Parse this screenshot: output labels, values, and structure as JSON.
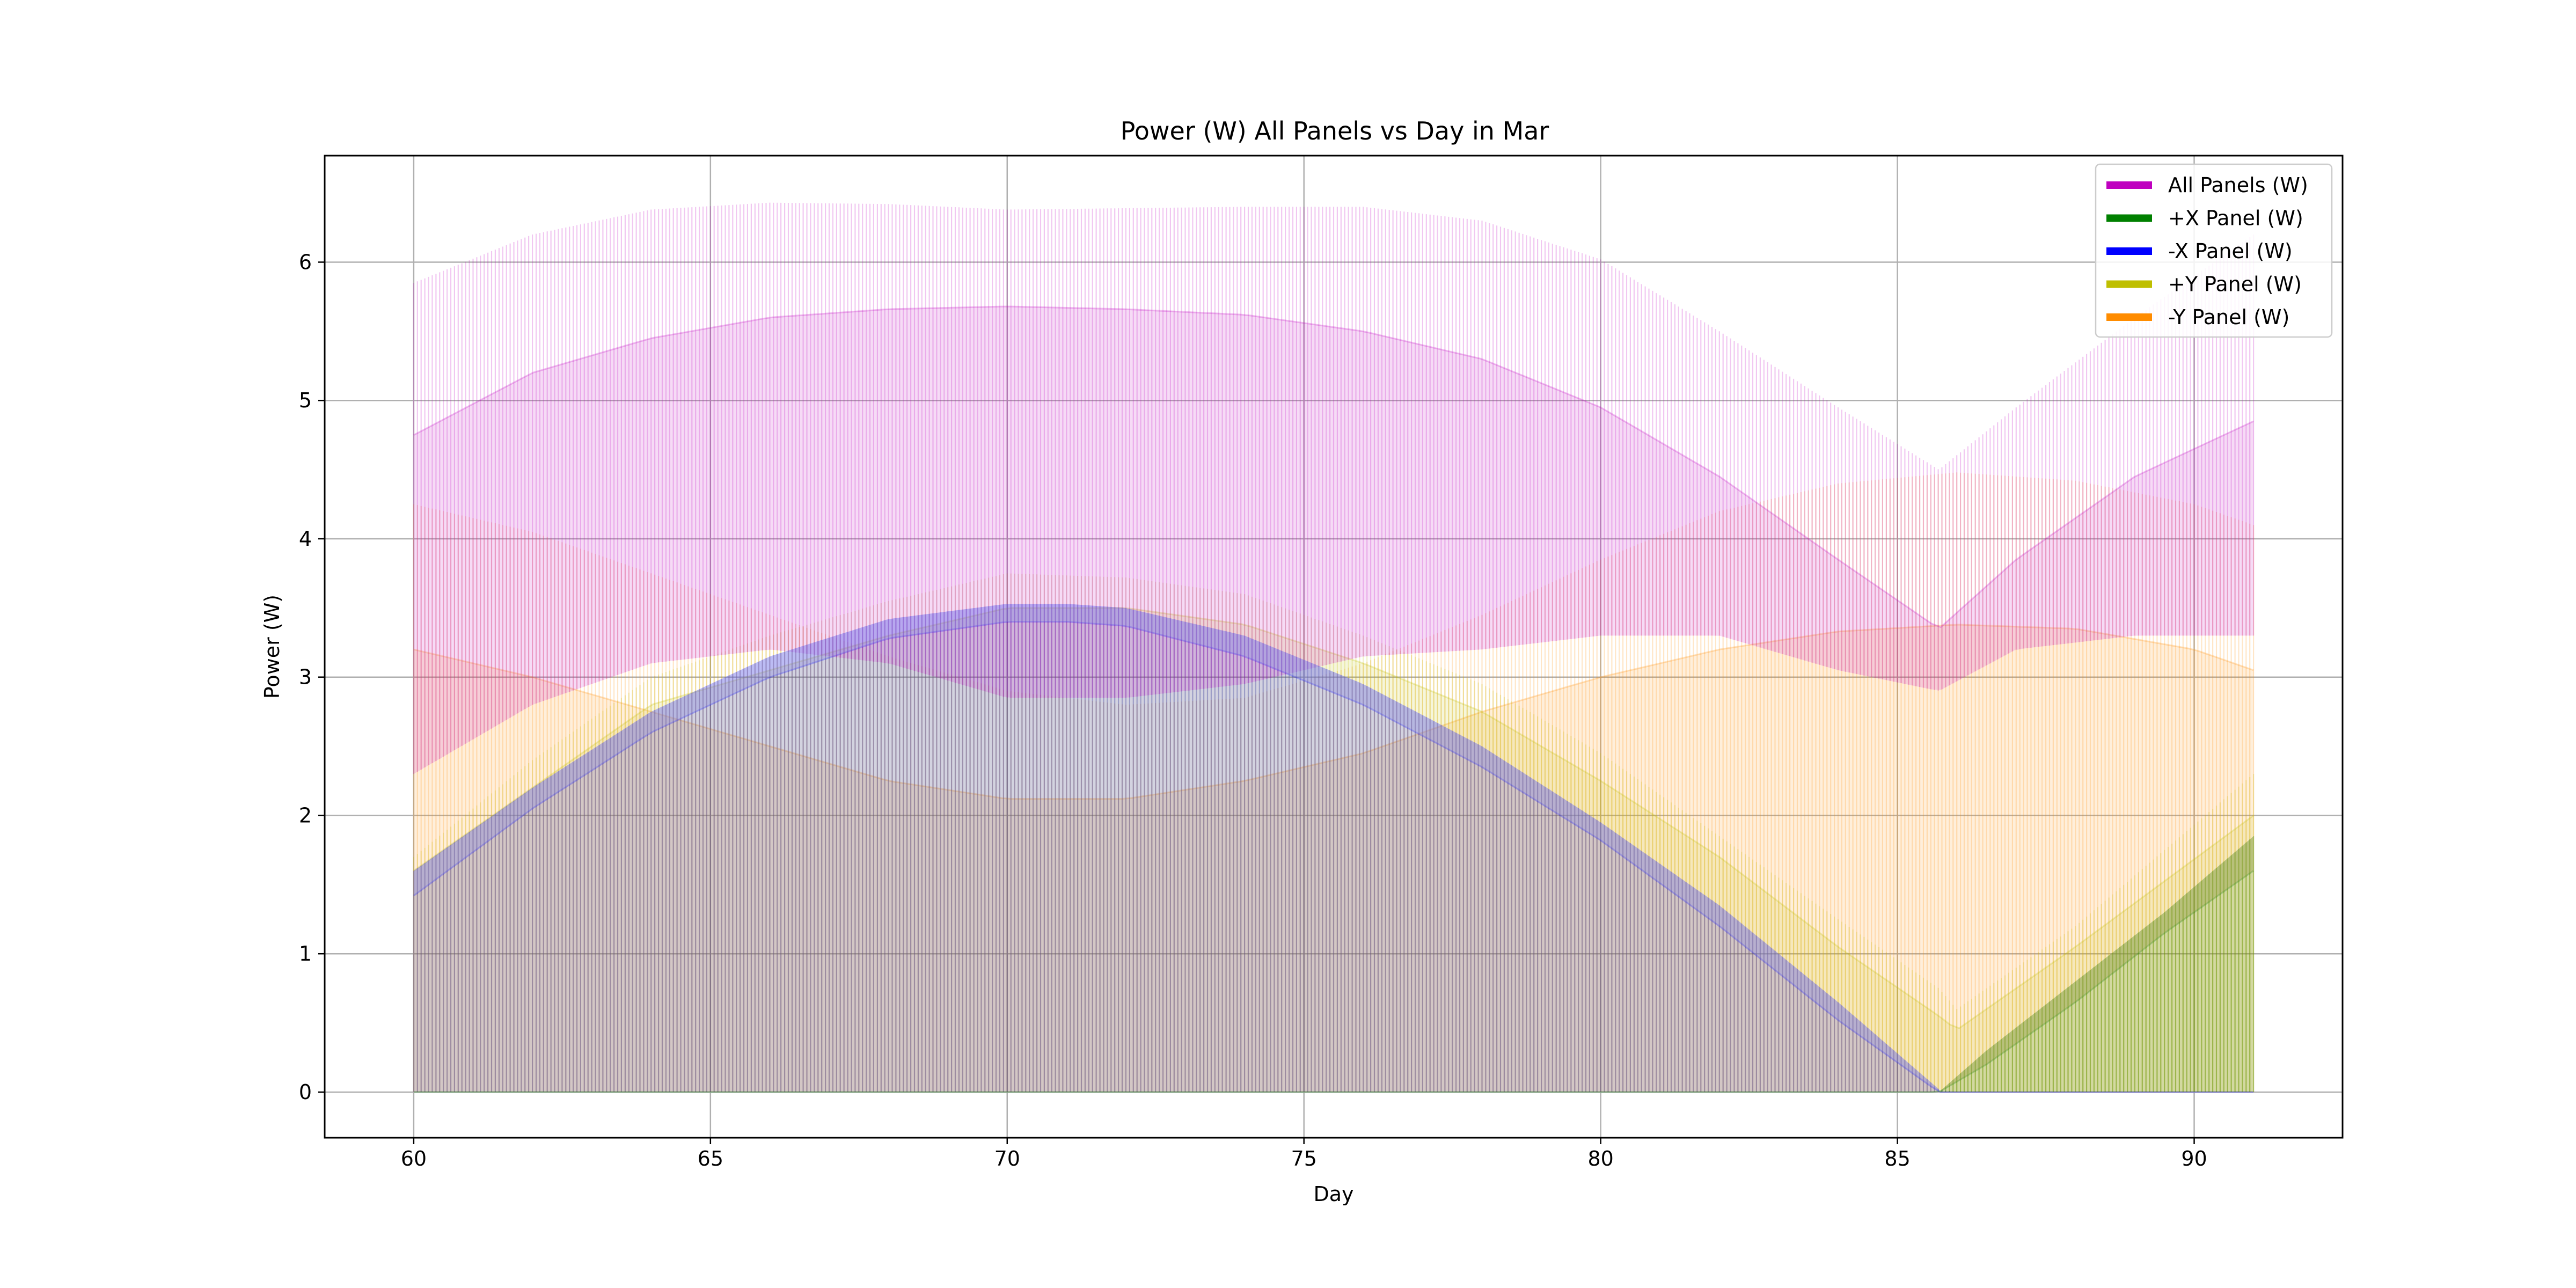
{
  "chart_data": {
    "type": "line",
    "title": "Power (W) All Panels vs Day in Mar",
    "xlabel": "Day",
    "ylabel": "Power (W)",
    "xlim": [
      58.5,
      92.5
    ],
    "ylim": [
      -0.33,
      6.77
    ],
    "x_ticks": [
      60,
      65,
      70,
      75,
      80,
      85,
      90
    ],
    "y_ticks": [
      0,
      1,
      2,
      3,
      4,
      5,
      6
    ],
    "grid": true,
    "legend_position": "top-right",
    "series": [
      {
        "name": "All Panels (W)",
        "color": "#bf00bf",
        "envelope": {
          "x": [
            60,
            62,
            64,
            66,
            68,
            70,
            72,
            74,
            76,
            78,
            80,
            82,
            84,
            85.7,
            87,
            89,
            91
          ],
          "high": [
            5.85,
            6.2,
            6.38,
            6.43,
            6.42,
            6.38,
            6.39,
            6.4,
            6.4,
            6.3,
            6.02,
            5.5,
            4.95,
            4.5,
            4.95,
            5.6,
            6.2
          ],
          "band": [
            4.75,
            5.2,
            5.45,
            5.6,
            5.66,
            5.68,
            5.66,
            5.62,
            5.5,
            5.3,
            4.95,
            4.45,
            3.85,
            3.35,
            3.85,
            4.45,
            4.85
          ],
          "low": [
            2.3,
            2.8,
            3.1,
            3.2,
            3.1,
            2.85,
            2.85,
            2.95,
            3.15,
            3.2,
            3.3,
            3.3,
            3.05,
            2.9,
            3.2,
            3.3,
            3.3
          ]
        }
      },
      {
        "name": "+X Panel (W)",
        "color": "#008000",
        "envelope": {
          "x": [
            60,
            85.7,
            86.5,
            88,
            89.5,
            91
          ],
          "high": [
            0,
            0,
            0.3,
            0.8,
            1.3,
            1.85
          ],
          "band": [
            0,
            0,
            0.2,
            0.65,
            1.15,
            1.6
          ],
          "low": [
            0,
            0,
            0,
            0,
            0,
            0
          ]
        }
      },
      {
        "name": "-X Panel (W)",
        "color": "#0000ff",
        "envelope": {
          "x": [
            60,
            62,
            64,
            66,
            68,
            70,
            71,
            72,
            74,
            76,
            78,
            80,
            82,
            84,
            85.7,
            86,
            91
          ],
          "high": [
            1.6,
            2.2,
            2.75,
            3.15,
            3.42,
            3.53,
            3.53,
            3.5,
            3.3,
            2.95,
            2.5,
            1.95,
            1.35,
            0.65,
            0.02,
            0,
            0
          ],
          "band": [
            1.42,
            2.05,
            2.6,
            3.0,
            3.28,
            3.4,
            3.4,
            3.37,
            3.15,
            2.8,
            2.35,
            1.82,
            1.2,
            0.52,
            0,
            0,
            0
          ],
          "low": [
            0,
            0,
            0,
            0,
            0,
            0,
            0,
            0,
            0,
            0,
            0,
            0,
            0,
            0,
            0,
            0,
            0
          ]
        }
      },
      {
        "name": "+Y Panel (W)",
        "color": "#bfbf00",
        "envelope": {
          "x": [
            60,
            62,
            64,
            66,
            68,
            70,
            72,
            74,
            76,
            78,
            80,
            82,
            84,
            85.7,
            86,
            88,
            91
          ],
          "high": [
            1.7,
            2.4,
            3.0,
            3.3,
            3.55,
            3.75,
            3.72,
            3.6,
            3.3,
            2.95,
            2.45,
            1.85,
            1.25,
            0.75,
            0.6,
            1.2,
            2.3
          ],
          "band": [
            1.6,
            2.2,
            2.8,
            3.05,
            3.3,
            3.5,
            3.5,
            3.38,
            3.1,
            2.75,
            2.25,
            1.7,
            1.05,
            0.55,
            0.45,
            1.05,
            2.0
          ],
          "low": [
            0,
            0,
            0,
            0,
            0,
            0,
            0,
            0,
            0,
            0,
            0,
            0,
            0,
            0,
            0,
            0,
            0
          ]
        }
      },
      {
        "name": "-Y Panel (W)",
        "color": "#ff8c00",
        "envelope": {
          "x": [
            60,
            62,
            64,
            66,
            68,
            70,
            72,
            74,
            76,
            78,
            80,
            82,
            84,
            86,
            88,
            90,
            91
          ],
          "high": [
            4.25,
            4.05,
            3.75,
            3.45,
            3.15,
            2.9,
            2.8,
            2.85,
            3.1,
            3.45,
            3.85,
            4.2,
            4.4,
            4.48,
            4.42,
            4.25,
            4.1
          ],
          "band": [
            3.2,
            3.0,
            2.75,
            2.5,
            2.25,
            2.12,
            2.12,
            2.25,
            2.45,
            2.75,
            3.0,
            3.2,
            3.33,
            3.38,
            3.35,
            3.2,
            3.05
          ],
          "low": [
            0,
            0,
            0,
            0,
            0,
            0,
            0,
            0,
            0,
            0,
            0,
            0,
            0,
            0,
            0,
            0,
            0
          ]
        }
      }
    ]
  }
}
